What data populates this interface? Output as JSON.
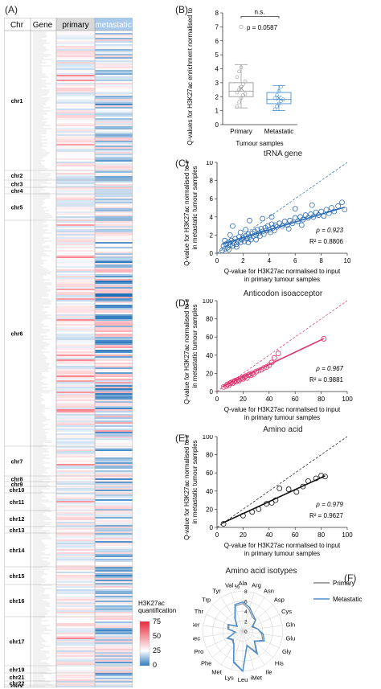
{
  "panels": {
    "A": "(A)",
    "B": "(B)",
    "C": "(C)",
    "D": "(D)",
    "E": "(E)",
    "F": "(F)"
  },
  "heatmap": {
    "columns": [
      "Chr",
      "Gene",
      "primary",
      "metastatic"
    ],
    "chromosomes": [
      "chr1",
      "chr2",
      "chr3",
      "chr4",
      "chr5",
      "chr6",
      "chr7",
      "chr8",
      "chr9",
      "chr10",
      "chr11",
      "chr12",
      "chr13",
      "chr14",
      "chr15",
      "chr16",
      "chr17",
      "chr19",
      "chr21",
      "chr22",
      "chrX"
    ],
    "colorbar": {
      "title_line1": "H3K27ac",
      "title_line2": "quantification",
      "ticks": [
        "75",
        "50",
        "25",
        "0"
      ],
      "colors": {
        "high": "#e8283a",
        "mid": "#ffffff",
        "low": "#2e7bbf"
      }
    }
  },
  "chart_data": [
    {
      "type": "box",
      "panel": "B",
      "categories": [
        "Primary",
        "Metastatic"
      ],
      "xlabel": "Tumour samples",
      "ylabel": "Q-values for H3K27ac enrichment normalised to input",
      "ylim": [
        0,
        8
      ],
      "yticks": [
        "0",
        "1",
        "2",
        "3",
        "4",
        "5",
        "6",
        "7",
        "8"
      ],
      "annotation": "n.s.",
      "pvalue": "p = 0.0587",
      "boxes": [
        {
          "name": "Primary",
          "whisker_low": 1.2,
          "q1": 2.0,
          "median": 2.4,
          "q3": 3.0,
          "whisker_high": 4.3,
          "mean": 2.6,
          "outliers": [
            7.0
          ],
          "points": [
            1.3,
            1.6,
            1.9,
            2.1,
            2.2,
            2.3,
            2.5,
            2.7,
            2.9,
            3.1,
            3.4,
            3.8,
            4.1
          ],
          "color": "#999999"
        },
        {
          "name": "Metastatic",
          "whisker_low": 1.0,
          "q1": 1.5,
          "median": 1.8,
          "q3": 2.3,
          "whisker_high": 2.8,
          "mean": 1.9,
          "outliers": [],
          "points": [
            1.1,
            1.3,
            1.5,
            1.7,
            1.8,
            1.9,
            2.1,
            2.4,
            2.7
          ],
          "color": "#4a8fd1"
        }
      ]
    },
    {
      "type": "scatter",
      "panel": "C",
      "title": "tRNA gene",
      "xlabel": "Q-value for H3K27ac normalised to input in primary tumour samples",
      "ylabel": "Q-value for H3K27ac normalised to input in metastatic tumour samples",
      "xlim": [
        0,
        10
      ],
      "ylim": [
        0,
        10
      ],
      "xticks": [
        "0",
        "2",
        "4",
        "6",
        "8",
        "10"
      ],
      "yticks": [
        "0",
        "2",
        "4",
        "6",
        "8",
        "10"
      ],
      "rho": "ρ = 0.923",
      "r2": "R² = 0.8806",
      "color": "#2e6db4",
      "fit": {
        "slope": 0.43,
        "intercept": 0.85
      },
      "points": [
        [
          0.4,
          0.3
        ],
        [
          0.5,
          0.8
        ],
        [
          0.6,
          0.5
        ],
        [
          0.7,
          1.0
        ],
        [
          0.8,
          0.6
        ],
        [
          0.9,
          1.2
        ],
        [
          1.0,
          0.9
        ],
        [
          1.1,
          1.4
        ],
        [
          1.2,
          0.8
        ],
        [
          1.3,
          1.1
        ],
        [
          1.4,
          1.6
        ],
        [
          1.5,
          1.0
        ],
        [
          1.6,
          1.3
        ],
        [
          1.7,
          1.8
        ],
        [
          1.8,
          1.2
        ],
        [
          1.9,
          1.5
        ],
        [
          2.0,
          1.7
        ],
        [
          2.1,
          1.3
        ],
        [
          2.2,
          1.9
        ],
        [
          2.3,
          1.6
        ],
        [
          2.4,
          2.1
        ],
        [
          2.5,
          1.8
        ],
        [
          2.6,
          1.5
        ],
        [
          2.7,
          2.2
        ],
        [
          2.8,
          1.9
        ],
        [
          2.9,
          2.4
        ],
        [
          3.0,
          2.0
        ],
        [
          3.1,
          2.6
        ],
        [
          3.2,
          2.2
        ],
        [
          3.3,
          1.9
        ],
        [
          3.4,
          2.7
        ],
        [
          3.5,
          2.4
        ],
        [
          3.6,
          2.1
        ],
        [
          3.7,
          2.8
        ],
        [
          3.8,
          2.5
        ],
        [
          3.9,
          3.0
        ],
        [
          4.0,
          2.6
        ],
        [
          4.1,
          2.3
        ],
        [
          4.2,
          3.2
        ],
        [
          4.3,
          2.8
        ],
        [
          4.4,
          2.5
        ],
        [
          4.5,
          3.1
        ],
        [
          4.6,
          2.9
        ],
        [
          4.8,
          3.3
        ],
        [
          5.0,
          3.0
        ],
        [
          5.2,
          3.5
        ],
        [
          5.4,
          3.1
        ],
        [
          5.6,
          3.6
        ],
        [
          5.8,
          3.3
        ],
        [
          6.0,
          3.9
        ],
        [
          6.2,
          3.5
        ],
        [
          6.4,
          4.0
        ],
        [
          6.6,
          3.7
        ],
        [
          6.8,
          4.2
        ],
        [
          7.0,
          3.9
        ],
        [
          7.2,
          4.3
        ],
        [
          7.4,
          4.0
        ],
        [
          7.6,
          4.5
        ],
        [
          7.8,
          4.2
        ],
        [
          8.0,
          4.6
        ],
        [
          8.2,
          4.1
        ],
        [
          8.4,
          4.8
        ],
        [
          8.6,
          4.4
        ],
        [
          8.8,
          5.0
        ],
        [
          9.0,
          4.6
        ],
        [
          9.3,
          5.2
        ],
        [
          9.6,
          5.6
        ],
        [
          9.8,
          4.8
        ],
        [
          1.2,
          3.0
        ],
        [
          2.5,
          3.6
        ],
        [
          3.5,
          3.8
        ],
        [
          4.2,
          4.0
        ],
        [
          6.0,
          4.9
        ],
        [
          7.3,
          5.3
        ],
        [
          0.9,
          0.4
        ],
        [
          1.5,
          0.7
        ],
        [
          2.4,
          1.2
        ],
        [
          3.0,
          1.5
        ],
        [
          5.5,
          2.7
        ],
        [
          6.5,
          3.1
        ],
        [
          0.6,
          1.4
        ],
        [
          1.0,
          2.0
        ],
        [
          1.8,
          2.3
        ],
        [
          2.2,
          2.6
        ]
      ]
    },
    {
      "type": "scatter",
      "panel": "D",
      "title": "Anticodon isoacceptor",
      "xlabel": "Q-value for H3K27ac normalised to input in primary tumour samples",
      "ylabel": "Q-value for H3K27ac normalised to input in metastatic tumour samples",
      "xlim": [
        0,
        100
      ],
      "ylim": [
        0,
        100
      ],
      "xticks": [
        "0",
        "20",
        "40",
        "60",
        "80",
        "100"
      ],
      "yticks": [
        "0",
        "20",
        "40",
        "60",
        "80",
        "100"
      ],
      "rho": "ρ = 0.967",
      "r2": "R² = 0.9881",
      "color": "#e0336e",
      "fit": {
        "slope": 0.68,
        "intercept": 2.5
      },
      "points": [
        [
          5,
          5
        ],
        [
          7,
          6
        ],
        [
          8,
          8
        ],
        [
          9,
          7
        ],
        [
          10,
          9
        ],
        [
          11,
          10
        ],
        [
          12,
          9
        ],
        [
          13,
          11
        ],
        [
          14,
          12
        ],
        [
          15,
          11
        ],
        [
          16,
          13
        ],
        [
          17,
          12
        ],
        [
          18,
          14
        ],
        [
          19,
          15
        ],
        [
          20,
          14
        ],
        [
          21,
          16
        ],
        [
          22,
          17
        ],
        [
          23,
          15
        ],
        [
          24,
          18
        ],
        [
          25,
          19
        ],
        [
          26,
          18
        ],
        [
          27,
          20
        ],
        [
          28,
          19
        ],
        [
          30,
          22
        ],
        [
          32,
          23
        ],
        [
          34,
          24
        ],
        [
          36,
          26
        ],
        [
          38,
          27
        ],
        [
          40,
          29
        ],
        [
          42,
          32
        ],
        [
          44,
          37
        ],
        [
          47,
          42
        ],
        [
          82,
          58
        ]
      ]
    },
    {
      "type": "scatter",
      "panel": "E",
      "title": "Amino acid",
      "xlabel": "Q-value for H3K27ac normalised to input in primary tumour samples",
      "ylabel": "Q-value for H3K27ac normalised to input in metastatic tumour samples",
      "xlim": [
        0,
        100
      ],
      "ylim": [
        0,
        100
      ],
      "xticks": [
        "0",
        "20",
        "40",
        "60",
        "80",
        "100"
      ],
      "yticks": [
        "0",
        "20",
        "40",
        "60",
        "80",
        "100"
      ],
      "rho": "ρ = 0.979",
      "r2": "R² = 0.9627",
      "color": "#111111",
      "fit": {
        "slope": 0.66,
        "intercept": 2.0
      },
      "points": [
        [
          5,
          4
        ],
        [
          20,
          13
        ],
        [
          27,
          17
        ],
        [
          32,
          20
        ],
        [
          38,
          26
        ],
        [
          42,
          27
        ],
        [
          45,
          30
        ],
        [
          48,
          43
        ],
        [
          55,
          42
        ],
        [
          61,
          39
        ],
        [
          66,
          45
        ],
        [
          70,
          51
        ],
        [
          76,
          54
        ],
        [
          80,
          57
        ],
        [
          83,
          56
        ]
      ]
    },
    {
      "type": "radar",
      "panel": "F",
      "title": "Amino acid isotypes",
      "axis_label": "%",
      "ticks": [
        "8",
        "6",
        "4",
        "2",
        "0"
      ],
      "rmax": 8,
      "categories": [
        "Ala",
        "Arg",
        "Asn",
        "Asp",
        "Cys",
        "Gln",
        "Glu",
        "Gly",
        "His",
        "Ile",
        "iMet",
        "Leu",
        "Lys",
        "Met",
        "Phe",
        "Pro",
        "Sec",
        "Ser",
        "Thr",
        "Trp",
        "Tyr",
        "Val"
      ],
      "series": [
        {
          "name": "Primary",
          "color": "#888888",
          "values": [
            5.5,
            4.5,
            3.4,
            3.3,
            2.0,
            3.0,
            3.8,
            4.4,
            3.0,
            5.0,
            2.9,
            7.9,
            6.3,
            3.2,
            2.5,
            3.3,
            1.4,
            2.8,
            3.0,
            1.4,
            2.7,
            5.2
          ]
        },
        {
          "name": "Metastatic",
          "color": "#4a8fd1",
          "values": [
            5.8,
            4.9,
            3.8,
            3.4,
            2.2,
            3.0,
            4.1,
            4.7,
            3.1,
            5.4,
            3.0,
            8.0,
            6.5,
            3.3,
            2.7,
            3.4,
            1.5,
            3.0,
            3.2,
            1.5,
            2.9,
            5.5
          ]
        }
      ]
    }
  ]
}
